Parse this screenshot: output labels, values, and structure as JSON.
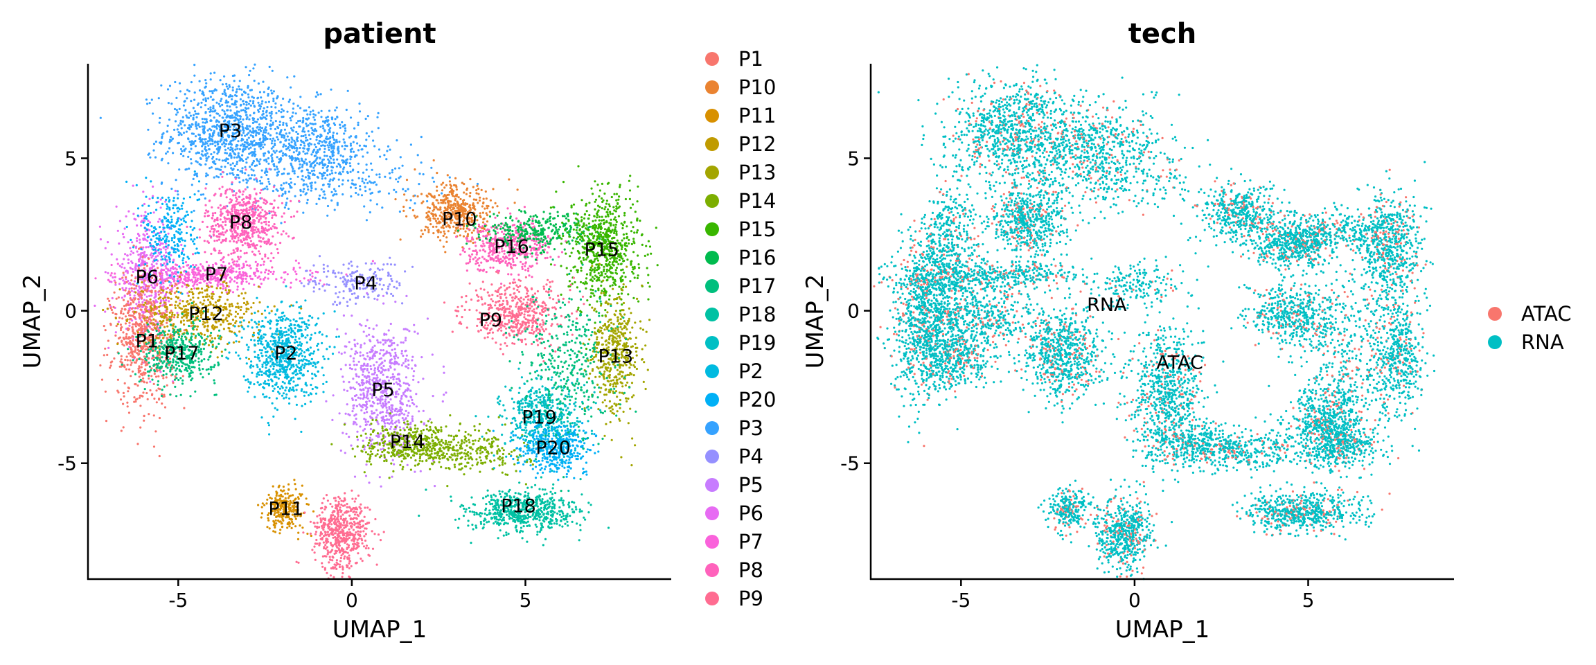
{
  "chart_data": [
    {
      "type": "scatter",
      "title": "patient",
      "xlabel": "UMAP_1",
      "ylabel": "UMAP_2",
      "xlim": [
        -7.6,
        9.2
      ],
      "ylim": [
        -8.8,
        8.1
      ],
      "xticks": [
        -5,
        0,
        5
      ],
      "yticks": [
        -5,
        0,
        5
      ],
      "tick_labels_x": [
        "-5",
        "0",
        "5"
      ],
      "tick_labels_y": [
        "-5",
        "0",
        "5"
      ],
      "grid": false,
      "legend_placement": "right",
      "legend": [
        {
          "name": "P1",
          "color": "#F8766D"
        },
        {
          "name": "P10",
          "color": "#EA8331"
        },
        {
          "name": "P11",
          "color": "#D89000"
        },
        {
          "name": "P12",
          "color": "#C09B00"
        },
        {
          "name": "P13",
          "color": "#A3A500"
        },
        {
          "name": "P14",
          "color": "#7CAE00"
        },
        {
          "name": "P15",
          "color": "#39B600"
        },
        {
          "name": "P16",
          "color": "#00BB4E"
        },
        {
          "name": "P17",
          "color": "#00BF7D"
        },
        {
          "name": "P18",
          "color": "#00C1A3"
        },
        {
          "name": "P19",
          "color": "#00BFC4"
        },
        {
          "name": "P2",
          "color": "#00BAE0"
        },
        {
          "name": "P20",
          "color": "#00B0F6"
        },
        {
          "name": "P3",
          "color": "#35A2FF"
        },
        {
          "name": "P4",
          "color": "#9590FF"
        },
        {
          "name": "P5",
          "color": "#C77CFF"
        },
        {
          "name": "P6",
          "color": "#E76BF3"
        },
        {
          "name": "P7",
          "color": "#FA62DB"
        },
        {
          "name": "P8",
          "color": "#FF62BC"
        },
        {
          "name": "P9",
          "color": "#FF6C91"
        }
      ],
      "clusters": [
        {
          "name": "P1",
          "x": -5.9,
          "y": -1.0,
          "color": "#F8766D"
        },
        {
          "name": "P10",
          "x": 3.1,
          "y": 3.0,
          "color": "#EA8331"
        },
        {
          "name": "P11",
          "x": -1.9,
          "y": -6.5,
          "color": "#D89000"
        },
        {
          "name": "P12",
          "x": -4.2,
          "y": -0.1,
          "color": "#C09B00"
        },
        {
          "name": "P13",
          "x": 7.6,
          "y": -1.5,
          "color": "#A3A500"
        },
        {
          "name": "P14",
          "x": 1.6,
          "y": -4.3,
          "color": "#7CAE00"
        },
        {
          "name": "P15",
          "x": 7.2,
          "y": 2.0,
          "color": "#39B600"
        },
        {
          "name": "P16",
          "x": 4.6,
          "y": 2.1,
          "color": "#00BB4E"
        },
        {
          "name": "P17",
          "x": -4.9,
          "y": -1.4,
          "color": "#00BF7D"
        },
        {
          "name": "P18",
          "x": 4.8,
          "y": -6.4,
          "color": "#00C1A3"
        },
        {
          "name": "P19",
          "x": 5.4,
          "y": -3.5,
          "color": "#00BFC4"
        },
        {
          "name": "P2",
          "x": -1.9,
          "y": -1.4,
          "color": "#00BAE0"
        },
        {
          "name": "P20",
          "x": 5.8,
          "y": -4.5,
          "color": "#00B0F6"
        },
        {
          "name": "P3",
          "x": -3.5,
          "y": 5.9,
          "color": "#35A2FF"
        },
        {
          "name": "P4",
          "x": 0.4,
          "y": 0.9,
          "color": "#9590FF"
        },
        {
          "name": "P5",
          "x": 0.9,
          "y": -2.6,
          "color": "#C77CFF"
        },
        {
          "name": "P6",
          "x": -5.9,
          "y": 1.1,
          "color": "#E76BF3"
        },
        {
          "name": "P7",
          "x": -3.9,
          "y": 1.2,
          "color": "#FA62DB"
        },
        {
          "name": "P8",
          "x": -3.2,
          "y": 2.9,
          "color": "#FF62BC"
        },
        {
          "name": "P9",
          "x": 4.0,
          "y": -0.3,
          "color": "#FF6C91"
        }
      ]
    },
    {
      "type": "scatter",
      "title": "tech",
      "xlabel": "UMAP_1",
      "ylabel": "UMAP_2",
      "xlim": [
        -7.6,
        9.2
      ],
      "ylim": [
        -8.8,
        8.1
      ],
      "xticks": [
        -5,
        0,
        5
      ],
      "yticks": [
        -5,
        0,
        5
      ],
      "tick_labels_x": [
        "-5",
        "0",
        "5"
      ],
      "tick_labels_y": [
        "-5",
        "0",
        "5"
      ],
      "grid": false,
      "legend_placement": "right",
      "legend": [
        {
          "name": "ATAC",
          "color": "#F8766D"
        },
        {
          "name": "RNA",
          "color": "#00BFC4"
        }
      ],
      "cluster_labels": [
        {
          "name": "RNA",
          "x": -0.8,
          "y": 0.2
        },
        {
          "name": "ATAC",
          "x": 1.3,
          "y": -1.7
        }
      ]
    }
  ]
}
